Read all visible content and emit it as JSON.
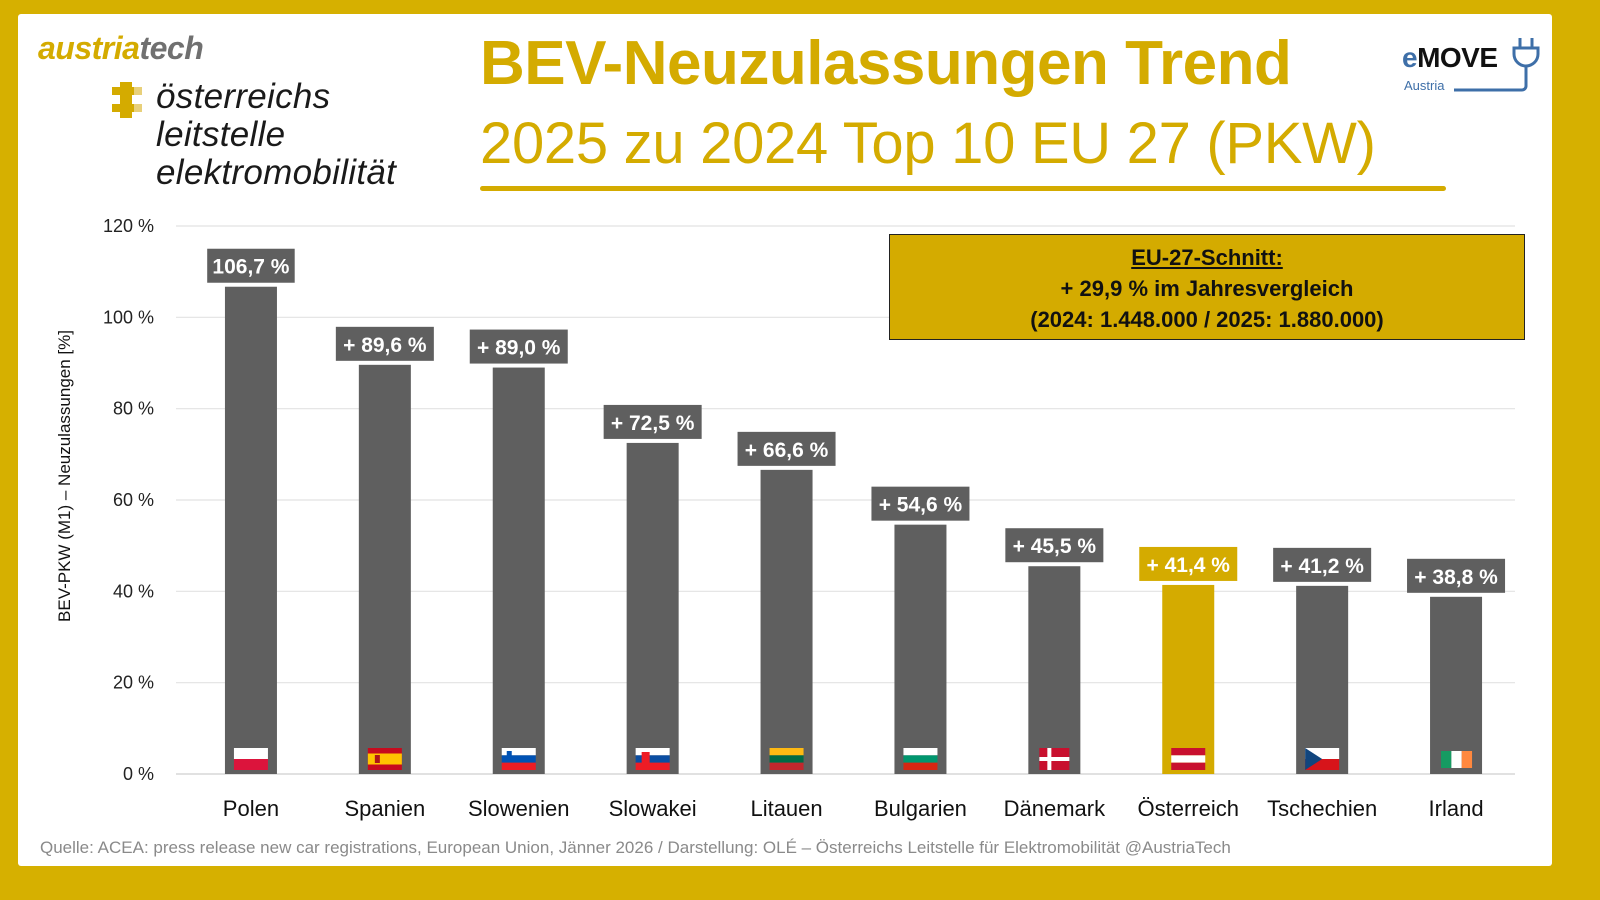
{
  "branding": {
    "austriatech_part1": "austria",
    "austriatech_part2": "tech",
    "ole_lines": [
      "österreichs",
      "leitstelle",
      "elektromobilität"
    ],
    "emove_e": "e",
    "emove_word": "MOVE",
    "emove_sub": "Austria"
  },
  "header": {
    "title": "BEV-Neuzulassungen Trend",
    "subtitle": "2025 zu 2024 Top 10 EU 27 (PKW)"
  },
  "info_box": {
    "heading": "EU-27-Schnitt:",
    "line1": "+ 29,9 % im Jahresvergleich",
    "line2": "(2024: 1.448.000 / 2025: 1.880.000)"
  },
  "source": "Quelle: ACEA: press release new car registrations, European Union, Jänner 2026 / Darstellung: OLÉ – Österreichs Leitstelle für Elektromobilität @AustriaTech",
  "colors": {
    "accent": "#d4ab00",
    "bar": "#5f5f5f",
    "highlight_bar": "#d4ab00",
    "grid": "#e2e2e2"
  },
  "chart_data": {
    "type": "bar",
    "title": "BEV-Neuzulassungen Trend – 2025 zu 2024 Top 10 EU 27 (PKW)",
    "xlabel": "",
    "ylabel": "BEV-PKW (M1) – Neuzulassungen [%]",
    "ylim": [
      0,
      120
    ],
    "yticks": [
      0,
      20,
      40,
      60,
      80,
      100,
      120
    ],
    "ytick_labels": [
      "0 %",
      "20 %",
      "40 %",
      "60 %",
      "80 %",
      "100 %",
      "120 %"
    ],
    "grid": true,
    "categories": [
      "Polen",
      "Spanien",
      "Slowenien",
      "Slowakei",
      "Litauen",
      "Bulgarien",
      "Dänemark",
      "Österreich",
      "Tschechien",
      "Irland"
    ],
    "values": [
      106.7,
      89.6,
      89.0,
      72.5,
      66.6,
      54.6,
      45.5,
      41.4,
      41.2,
      38.8
    ],
    "data_labels": [
      "106,7 %",
      "+ 89,6 %",
      "+ 89,0 %",
      "+ 72,5 %",
      "+ 66,6 %",
      "+ 54,6 %",
      "+ 45,5 %",
      "+ 41,4 %",
      "+ 41,2 %",
      "+ 38,8 %"
    ],
    "highlight": "Österreich",
    "flags": [
      "poland-flag",
      "spain-flag",
      "slovenia-flag",
      "slovakia-flag",
      "lithuania-flag",
      "bulgaria-flag",
      "denmark-flag",
      "austria-flag",
      "czechia-flag",
      "ireland-flag"
    ],
    "annotation": "EU-27-Schnitt: + 29,9 % im Jahresvergleich (2024: 1.448.000 / 2025: 1.880.000)"
  }
}
